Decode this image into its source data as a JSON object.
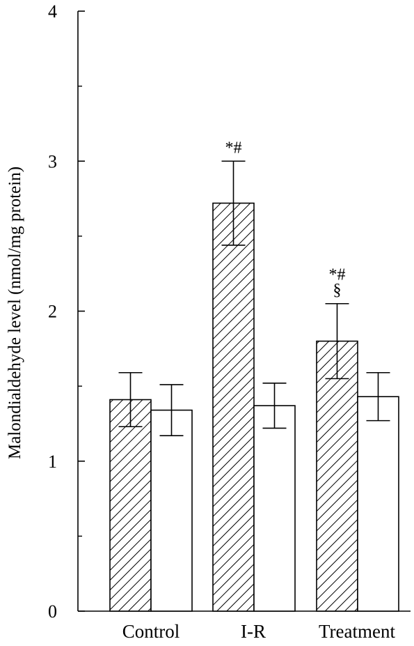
{
  "chart_data": {
    "type": "bar",
    "ylabel": "Malondialdehyde level (nmol/mg protein)",
    "xlabel": "",
    "ylim": [
      0,
      4
    ],
    "yticks": [
      0,
      1,
      2,
      3,
      4
    ],
    "yminor_step": 0.5,
    "categories": [
      "Control",
      "I-R",
      "Treatment"
    ],
    "series": [
      {
        "fill": "hatched",
        "values": [
          1.41,
          2.72,
          1.8
        ],
        "errors": [
          0.18,
          0.28,
          0.25
        ]
      },
      {
        "fill": "white",
        "values": [
          1.34,
          1.37,
          1.43
        ],
        "errors": [
          0.17,
          0.15,
          0.16
        ]
      }
    ],
    "annotations": [
      {
        "category": 1,
        "series": 0,
        "lines": [
          "*#"
        ]
      },
      {
        "category": 2,
        "series": 0,
        "lines": [
          "*#",
          "§"
        ]
      }
    ],
    "grid": false,
    "legend": "none",
    "colors": {
      "bar_edge": "#000000",
      "hatch": "#000000",
      "open_fill": "#ffffff"
    }
  }
}
